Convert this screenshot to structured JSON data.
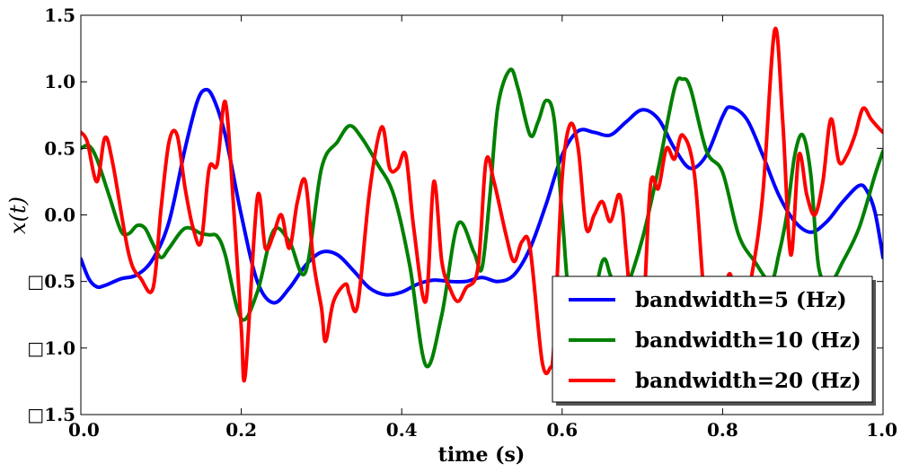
{
  "chart_data": {
    "type": "line",
    "title": "",
    "xlabel": "time (s)",
    "ylabel": "x(t)",
    "xlim": [
      0.0,
      1.0
    ],
    "ylim": [
      -1.5,
      1.5
    ],
    "xticks": [
      0.0,
      0.2,
      0.4,
      0.6,
      0.8,
      1.0
    ],
    "xtick_labels": [
      "0.0",
      "0.2",
      "0.4",
      "0.6",
      "0.8",
      "1.0"
    ],
    "yticks": [
      -1.5,
      -1.0,
      -0.5,
      0.0,
      0.5,
      1.0,
      1.5
    ],
    "ytick_labels": [
      "□1.5",
      "□1.0",
      "□0.5",
      "0.0",
      "0.5",
      "1.0",
      "1.5"
    ],
    "grid": false,
    "legend_position": "bottom-right",
    "series": [
      {
        "name": "bandwidth=5 (Hz)",
        "color": "#0000ff",
        "x": [
          0.0,
          0.01,
          0.02,
          0.03,
          0.05,
          0.07,
          0.09,
          0.11,
          0.13,
          0.145,
          0.155,
          0.165,
          0.18,
          0.2,
          0.22,
          0.24,
          0.26,
          0.28,
          0.3,
          0.32,
          0.34,
          0.36,
          0.38,
          0.4,
          0.42,
          0.44,
          0.46,
          0.48,
          0.5,
          0.52,
          0.54,
          0.56,
          0.58,
          0.6,
          0.62,
          0.64,
          0.66,
          0.68,
          0.7,
          0.72,
          0.74,
          0.76,
          0.78,
          0.8,
          0.81,
          0.83,
          0.85,
          0.87,
          0.89,
          0.91,
          0.93,
          0.95,
          0.97,
          0.98,
          0.99,
          1.0
        ],
        "y": [
          -0.33,
          -0.48,
          -0.54,
          -0.53,
          -0.48,
          -0.45,
          -0.33,
          -0.05,
          0.5,
          0.85,
          0.94,
          0.88,
          0.6,
          0.0,
          -0.5,
          -0.66,
          -0.55,
          -0.38,
          -0.28,
          -0.3,
          -0.42,
          -0.55,
          -0.6,
          -0.58,
          -0.52,
          -0.49,
          -0.5,
          -0.5,
          -0.47,
          -0.5,
          -0.45,
          -0.25,
          0.08,
          0.45,
          0.63,
          0.62,
          0.6,
          0.7,
          0.79,
          0.72,
          0.5,
          0.35,
          0.45,
          0.74,
          0.81,
          0.72,
          0.45,
          0.15,
          -0.05,
          -0.13,
          -0.05,
          0.1,
          0.22,
          0.18,
          0.02,
          -0.32
        ]
      },
      {
        "name": "bandwidth=10 (Hz)",
        "color": "#008000",
        "x": [
          0.0,
          0.01,
          0.02,
          0.035,
          0.05,
          0.06,
          0.07,
          0.08,
          0.09,
          0.1,
          0.11,
          0.13,
          0.15,
          0.16,
          0.17,
          0.18,
          0.2,
          0.22,
          0.24,
          0.26,
          0.28,
          0.3,
          0.32,
          0.335,
          0.35,
          0.37,
          0.39,
          0.41,
          0.43,
          0.45,
          0.47,
          0.49,
          0.5,
          0.51,
          0.52,
          0.535,
          0.545,
          0.56,
          0.57,
          0.58,
          0.59,
          0.6,
          0.61,
          0.63,
          0.65,
          0.66,
          0.67,
          0.68,
          0.7,
          0.72,
          0.74,
          0.75,
          0.76,
          0.78,
          0.8,
          0.82,
          0.84,
          0.86,
          0.87,
          0.88,
          0.89,
          0.9,
          0.91,
          0.92,
          0.935,
          0.95,
          0.97,
          0.99,
          1.0
        ],
        "y": [
          0.5,
          0.52,
          0.42,
          0.15,
          -0.12,
          -0.14,
          -0.08,
          -0.1,
          -0.22,
          -0.32,
          -0.25,
          -0.1,
          -0.14,
          -0.15,
          -0.16,
          -0.3,
          -0.78,
          -0.58,
          -0.12,
          -0.2,
          -0.43,
          0.35,
          0.55,
          0.67,
          0.58,
          0.38,
          0.15,
          -0.38,
          -1.13,
          -0.75,
          -0.07,
          -0.28,
          -0.4,
          0.15,
          0.82,
          1.09,
          0.95,
          0.6,
          0.7,
          0.86,
          0.72,
          0.0,
          -0.65,
          -0.85,
          -0.35,
          -0.45,
          -0.6,
          -0.55,
          -0.18,
          0.35,
          0.95,
          1.02,
          0.95,
          0.48,
          0.32,
          -0.15,
          -0.35,
          -0.5,
          -0.3,
          0.0,
          0.45,
          0.6,
          0.3,
          -0.4,
          -0.5,
          -0.35,
          -0.1,
          0.3,
          0.48
        ]
      },
      {
        "name": "bandwidth=20 (Hz)",
        "color": "#ff0000",
        "x": [
          0.0,
          0.008,
          0.02,
          0.03,
          0.04,
          0.06,
          0.075,
          0.09,
          0.1,
          0.11,
          0.12,
          0.13,
          0.14,
          0.15,
          0.16,
          0.17,
          0.18,
          0.19,
          0.2,
          0.205,
          0.22,
          0.23,
          0.24,
          0.25,
          0.26,
          0.27,
          0.28,
          0.29,
          0.3,
          0.305,
          0.315,
          0.33,
          0.335,
          0.345,
          0.36,
          0.375,
          0.385,
          0.395,
          0.405,
          0.415,
          0.43,
          0.44,
          0.45,
          0.46,
          0.47,
          0.48,
          0.495,
          0.505,
          0.515,
          0.53,
          0.54,
          0.55,
          0.56,
          0.575,
          0.585,
          0.59,
          0.6,
          0.61,
          0.62,
          0.63,
          0.64,
          0.65,
          0.66,
          0.67,
          0.675,
          0.68,
          0.69,
          0.7,
          0.71,
          0.72,
          0.73,
          0.74,
          0.75,
          0.765,
          0.78,
          0.79,
          0.8,
          0.81,
          0.82,
          0.835,
          0.85,
          0.865,
          0.875,
          0.885,
          0.895,
          0.905,
          0.915,
          0.925,
          0.935,
          0.945,
          0.955,
          0.965,
          0.975,
          0.985,
          0.995,
          1.0
        ],
        "y": [
          0.62,
          0.55,
          0.25,
          0.58,
          0.38,
          -0.3,
          -0.48,
          -0.55,
          0.05,
          0.55,
          0.6,
          0.2,
          -0.1,
          -0.2,
          0.35,
          0.38,
          0.85,
          0.1,
          -0.85,
          -1.2,
          0.13,
          -0.25,
          -0.15,
          0.0,
          -0.25,
          0.1,
          0.25,
          -0.35,
          -0.7,
          -0.95,
          -0.65,
          -0.52,
          -0.6,
          -0.68,
          0.18,
          0.66,
          0.35,
          0.35,
          0.45,
          -0.1,
          -0.65,
          0.25,
          -0.35,
          -0.55,
          -0.65,
          -0.55,
          -0.4,
          0.4,
          0.25,
          -0.15,
          -0.35,
          -0.2,
          -0.25,
          -1.1,
          -1.15,
          -0.95,
          0.28,
          0.68,
          0.5,
          -0.1,
          0.0,
          0.1,
          -0.05,
          0.15,
          0.05,
          -0.3,
          -0.9,
          -0.85,
          0.22,
          0.2,
          0.5,
          0.42,
          0.6,
          0.3,
          -0.8,
          -0.5,
          -0.6,
          -0.45,
          -0.9,
          -0.5,
          0.15,
          1.39,
          0.7,
          -0.3,
          0.45,
          0.15,
          0.0,
          0.25,
          0.72,
          0.4,
          0.45,
          0.6,
          0.8,
          0.72,
          0.65,
          0.62
        ]
      }
    ]
  }
}
